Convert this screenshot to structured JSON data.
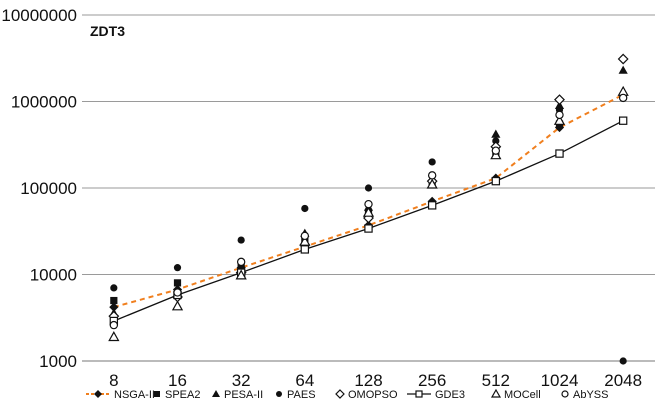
{
  "chart_data": {
    "type": "scatter",
    "title": "ZDT3",
    "xlabel": "",
    "ylabel": "",
    "x_scale": "log2",
    "y_scale": "log10",
    "x": [
      8,
      16,
      32,
      64,
      128,
      256,
      512,
      1024,
      2048
    ],
    "x_tick_labels": [
      "8",
      "16",
      "32",
      "64",
      "128",
      "256",
      "512",
      "1024",
      "2048"
    ],
    "y_tick_labels": [
      "1000",
      "10000",
      "100000",
      "1000000",
      "10000000"
    ],
    "ylim": [
      1000,
      10000000
    ],
    "grid": "horizontal",
    "legend_position": "bottom",
    "series": [
      {
        "name": "NSGA-II",
        "marker": "diamond",
        "line": "dashed",
        "color": "#f07f1e",
        "values": [
          4200,
          6700,
          12000,
          21000,
          37000,
          70000,
          130000,
          500000,
          1200000
        ]
      },
      {
        "name": "SPEA2",
        "marker": "square",
        "line": "none",
        "values": [
          5000,
          8000,
          13500,
          25000,
          50000,
          115000,
          250000,
          550000,
          1150000
        ]
      },
      {
        "name": "PESA-II",
        "marker": "triangle",
        "line": "none",
        "values": [
          3600,
          6000,
          11000,
          30000,
          60000,
          130000,
          420000,
          900000,
          2300000
        ]
      },
      {
        "name": "PAES",
        "marker": "circle",
        "line": "none",
        "values": [
          7000,
          12000,
          25000,
          58000,
          100000,
          200000,
          350000,
          800000,
          1000
        ]
      },
      {
        "name": "OMOPSO",
        "marker": "open-diamond",
        "line": "none",
        "values": [
          3300,
          5500,
          10500,
          22000,
          45000,
          120000,
          300000,
          1050000,
          3100000
        ]
      },
      {
        "name": "GDE3",
        "marker": "open-square",
        "line": "solid",
        "color": "#111111",
        "values": [
          2900,
          5800,
          10500,
          19500,
          34000,
          63000,
          120000,
          250000,
          600000
        ]
      },
      {
        "name": "MOCell",
        "marker": "open-triangle",
        "line": "none",
        "values": [
          1900,
          4300,
          9800,
          24000,
          52000,
          110000,
          240000,
          600000,
          1300000
        ]
      },
      {
        "name": "AbYSS",
        "marker": "open-circle",
        "line": "none",
        "values": [
          2600,
          6200,
          14000,
          28000,
          65000,
          140000,
          270000,
          700000,
          1100000
        ]
      }
    ]
  }
}
